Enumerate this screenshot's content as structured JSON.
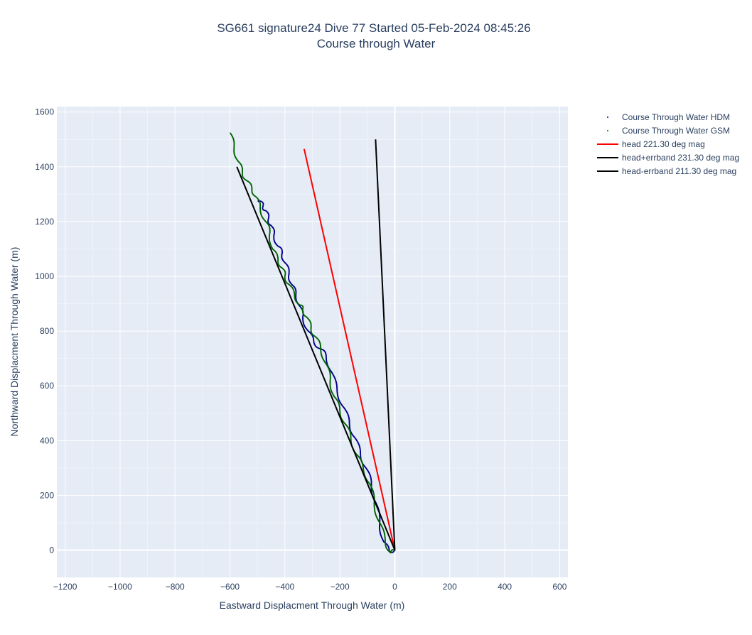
{
  "chart_data": {
    "type": "line",
    "title": "SG661 signature24 Dive 77 Started 05-Feb-2024 08:45:26",
    "subtitle": "Course through Water",
    "xlabel": "Eastward Displacment Through Water (m)",
    "ylabel": "Northward Displacment Through Water (m)",
    "xlim": [
      -1230,
      630
    ],
    "ylim": [
      -100,
      1620
    ],
    "x_ticks": [
      -1200,
      -1000,
      -800,
      -600,
      -400,
      -200,
      0,
      200,
      400,
      600
    ],
    "y_ticks": [
      0,
      200,
      400,
      600,
      800,
      1000,
      1200,
      1400,
      1600
    ],
    "x_tick_labels": [
      "−1200",
      "−1000",
      "−800",
      "−600",
      "−400",
      "−200",
      "0",
      "200",
      "400",
      "600"
    ],
    "y_tick_labels": [
      "0",
      "200",
      "400",
      "600",
      "800",
      "1000",
      "1200",
      "1400",
      "1600"
    ],
    "grid": true,
    "legend_placement": "top-right outside",
    "series": [
      {
        "name": "Course Through Water HDM",
        "mode": "markers",
        "color": "#00008b",
        "x": [
          0,
          -20,
          -40,
          -55,
          -70,
          -85,
          -105,
          -125,
          -145,
          -165,
          -185,
          -210,
          -230,
          -250,
          -270,
          -295,
          -315,
          -335,
          -345,
          -360,
          -375,
          -385,
          -400,
          -410,
          -425,
          -440,
          -450,
          -460,
          -470,
          -480,
          -490,
          -495
        ],
        "y": [
          0,
          -5,
          30,
          100,
          175,
          240,
          300,
          350,
          410,
          460,
          520,
          580,
          650,
          710,
          735,
          760,
          800,
          850,
          890,
          935,
          970,
          1010,
          1050,
          1085,
          1110,
          1150,
          1185,
          1210,
          1240,
          1255,
          1275,
          1280
        ]
      },
      {
        "name": "Course Through Water GSM",
        "mode": "markers",
        "color": "#006400",
        "x": [
          0,
          -15,
          -35,
          -55,
          -75,
          -90,
          -115,
          -140,
          -160,
          -180,
          -200,
          -220,
          -235,
          -250,
          -270,
          -290,
          -305,
          -320,
          -335,
          -345,
          -365,
          -385,
          -400,
          -410,
          -425,
          -445,
          -455,
          -470,
          -490,
          -505,
          -520,
          -540,
          -555,
          -570,
          -585,
          -600
        ],
        "y": [
          0,
          -10,
          30,
          100,
          170,
          240,
          300,
          350,
          410,
          460,
          510,
          560,
          620,
          680,
          740,
          780,
          810,
          850,
          880,
          895,
          930,
          970,
          1000,
          1030,
          1060,
          1100,
          1160,
          1200,
          1250,
          1290,
          1320,
          1350,
          1380,
          1420,
          1470,
          1525
        ]
      },
      {
        "name": "head 221.30 deg mag",
        "mode": "lines",
        "color": "#ff0000",
        "x": [
          0,
          -330
        ],
        "y": [
          0,
          1465
        ]
      },
      {
        "name": "head+errband 231.30 deg mag",
        "mode": "lines",
        "color": "#000000",
        "x": [
          0,
          -575
        ],
        "y": [
          0,
          1400
        ]
      },
      {
        "name": "head-errband 211.30 deg mag",
        "mode": "lines",
        "color": "#000000",
        "x": [
          0,
          -70
        ],
        "y": [
          0,
          1500
        ]
      }
    ]
  }
}
